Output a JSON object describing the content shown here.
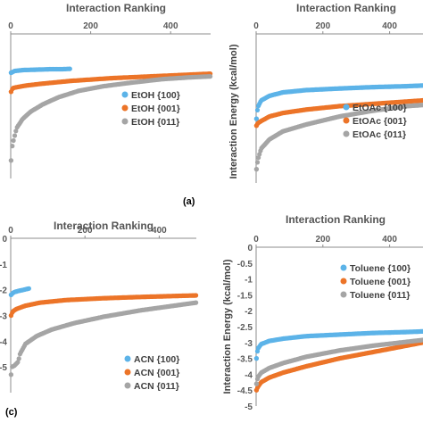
{
  "panels_label": [
    "(a)",
    "(c)"
  ],
  "colors": {
    "blue": "#5cb3e8",
    "orange": "#ec7428",
    "gray": "#a5a5a5"
  },
  "chart_data": [
    {
      "id": "a",
      "type": "scatter",
      "title": "Interaction Ranking",
      "xlabel": "",
      "ylabel": "",
      "xlim": [
        0,
        500
      ],
      "x_ticks": [
        0,
        200,
        400
      ],
      "ylim": [
        -8,
        0
      ],
      "y_tick_labels": [],
      "panel_label": "(a)",
      "legend_position": "bottom-right",
      "series": [
        {
          "name": "EtOH {100}",
          "color": "#5cb3e8",
          "points": [
            [
              1,
              -2.15
            ],
            [
              10,
              -2.05
            ],
            [
              30,
              -2.0
            ],
            [
              60,
              -1.98
            ],
            [
              100,
              -1.95
            ],
            [
              130,
              -1.95
            ],
            [
              150,
              -1.93
            ]
          ]
        },
        {
          "name": "EtOH {001}",
          "color": "#ec7428",
          "points": [
            [
              1,
              -3.2
            ],
            [
              5,
              -3.0
            ],
            [
              15,
              -2.95
            ],
            [
              40,
              -2.85
            ],
            [
              80,
              -2.75
            ],
            [
              150,
              -2.6
            ],
            [
              250,
              -2.45
            ],
            [
              350,
              -2.35
            ],
            [
              450,
              -2.25
            ],
            [
              500,
              -2.2
            ]
          ]
        },
        {
          "name": "EtOH {011}",
          "color": "#a5a5a5",
          "points": [
            [
              1,
              -7.0
            ],
            [
              3,
              -6.3
            ],
            [
              8,
              -5.8
            ],
            [
              15,
              -5.2
            ],
            [
              30,
              -4.7
            ],
            [
              50,
              -4.3
            ],
            [
              80,
              -3.9
            ],
            [
              120,
              -3.5
            ],
            [
              170,
              -3.15
            ],
            [
              230,
              -2.9
            ],
            [
              300,
              -2.7
            ],
            [
              380,
              -2.5
            ],
            [
              450,
              -2.4
            ],
            [
              500,
              -2.35
            ]
          ]
        }
      ]
    },
    {
      "id": "b",
      "type": "scatter",
      "title": "Interaction Ranking",
      "xlabel": "",
      "ylabel": "Interaction Energy (kcal/mol)",
      "xlim": [
        0,
        500
      ],
      "x_ticks": [
        0,
        200,
        400
      ],
      "ylim": [
        -6.5,
        0
      ],
      "y_tick_labels": [],
      "panel_label": "",
      "legend_position": "bottom-right",
      "series": [
        {
          "name": "EtOAc {100}",
          "color": "#5cb3e8",
          "points": [
            [
              1,
              -3.7
            ],
            [
              5,
              -3.2
            ],
            [
              15,
              -2.9
            ],
            [
              40,
              -2.7
            ],
            [
              80,
              -2.55
            ],
            [
              150,
              -2.45
            ],
            [
              250,
              -2.38
            ],
            [
              350,
              -2.32
            ],
            [
              450,
              -2.28
            ],
            [
              500,
              -2.25
            ]
          ]
        },
        {
          "name": "EtOAc {001}",
          "color": "#ec7428",
          "points": [
            [
              1,
              -4.0
            ],
            [
              5,
              -3.9
            ],
            [
              15,
              -3.8
            ],
            [
              40,
              -3.6
            ],
            [
              80,
              -3.45
            ],
            [
              150,
              -3.3
            ],
            [
              250,
              -3.15
            ],
            [
              350,
              -3.05
            ],
            [
              450,
              -2.95
            ],
            [
              500,
              -2.9
            ]
          ]
        },
        {
          "name": "EtOAc {011}",
          "color": "#a5a5a5",
          "points": [
            [
              1,
              -5.9
            ],
            [
              5,
              -5.5
            ],
            [
              15,
              -5.0
            ],
            [
              40,
              -4.6
            ],
            [
              80,
              -4.25
            ],
            [
              150,
              -3.95
            ],
            [
              250,
              -3.6
            ],
            [
              350,
              -3.35
            ],
            [
              450,
              -3.15
            ],
            [
              500,
              -3.1
            ]
          ]
        }
      ]
    },
    {
      "id": "c",
      "type": "scatter",
      "title": "Interaction Ranking",
      "xlabel": "",
      "ylabel": "",
      "xlim": [
        0,
        500
      ],
      "x_ticks": [
        0,
        200,
        400
      ],
      "ylim": [
        -6,
        0
      ],
      "y_tick_labels": [
        "0",
        "-1",
        "-2",
        "-3",
        "-4",
        "-5"
      ],
      "y_tick_values": [
        0,
        -1,
        -2,
        -3,
        -4,
        -5
      ],
      "panel_label": "(c)",
      "legend_position": "bottom-right",
      "series": [
        {
          "name": "ACN {100}",
          "color": "#5cb3e8",
          "points": [
            [
              1,
              -2.2
            ],
            [
              8,
              -2.1
            ],
            [
              20,
              -2.05
            ],
            [
              35,
              -2.0
            ],
            [
              50,
              -1.95
            ]
          ]
        },
        {
          "name": "ACN {001}",
          "color": "#ec7428",
          "points": [
            [
              1,
              -3.0
            ],
            [
              5,
              -2.85
            ],
            [
              15,
              -2.75
            ],
            [
              40,
              -2.62
            ],
            [
              80,
              -2.5
            ],
            [
              150,
              -2.4
            ],
            [
              250,
              -2.33
            ],
            [
              350,
              -2.28
            ],
            [
              450,
              -2.24
            ],
            [
              500,
              -2.22
            ]
          ]
        },
        {
          "name": "ACN {011}",
          "color": "#a5a5a5",
          "points": [
            [
              1,
              -5.3
            ],
            [
              3,
              -5.0
            ],
            [
              10,
              -4.95
            ],
            [
              20,
              -4.8
            ],
            [
              25,
              -4.5
            ],
            [
              40,
              -4.1
            ],
            [
              70,
              -3.8
            ],
            [
              110,
              -3.55
            ],
            [
              170,
              -3.3
            ],
            [
              250,
              -3.05
            ],
            [
              350,
              -2.8
            ],
            [
              450,
              -2.6
            ],
            [
              500,
              -2.5
            ]
          ]
        }
      ]
    },
    {
      "id": "d",
      "type": "scatter",
      "title": "Interaction Ranking",
      "xlabel": "",
      "ylabel": "Interaction Energy (kcal/mol)",
      "xlim": [
        0,
        500
      ],
      "x_ticks": [
        0,
        200,
        400
      ],
      "ylim": [
        -5,
        0
      ],
      "y_tick_labels": [
        "0",
        "-0.5",
        "-1",
        "-1.5",
        "-2",
        "-2.5",
        "-3",
        "-3.5",
        "-4",
        "-4.5",
        "-5"
      ],
      "y_tick_values": [
        0,
        -0.5,
        -1,
        -1.5,
        -2,
        -2.5,
        -3,
        -3.5,
        -4,
        -4.5,
        -5
      ],
      "panel_label": "",
      "legend_position": "top-right",
      "series": [
        {
          "name": "Toluene {100}",
          "color": "#5cb3e8",
          "points": [
            [
              1,
              -3.5
            ],
            [
              5,
              -3.2
            ],
            [
              15,
              -3.05
            ],
            [
              40,
              -2.95
            ],
            [
              80,
              -2.88
            ],
            [
              150,
              -2.8
            ],
            [
              250,
              -2.75
            ],
            [
              350,
              -2.7
            ],
            [
              450,
              -2.67
            ],
            [
              500,
              -2.65
            ]
          ]
        },
        {
          "name": "Toluene {001}",
          "color": "#ec7428",
          "points": [
            [
              1,
              -4.5
            ],
            [
              5,
              -4.4
            ],
            [
              15,
              -4.25
            ],
            [
              40,
              -4.1
            ],
            [
              80,
              -3.95
            ],
            [
              150,
              -3.75
            ],
            [
              250,
              -3.5
            ],
            [
              350,
              -3.3
            ],
            [
              450,
              -3.1
            ],
            [
              500,
              -3.0
            ]
          ]
        },
        {
          "name": "Toluene {011}",
          "color": "#a5a5a5",
          "points": [
            [
              1,
              -4.3
            ],
            [
              5,
              -4.1
            ],
            [
              15,
              -3.95
            ],
            [
              40,
              -3.8
            ],
            [
              80,
              -3.65
            ],
            [
              150,
              -3.45
            ],
            [
              250,
              -3.25
            ],
            [
              350,
              -3.1
            ],
            [
              450,
              -2.98
            ],
            [
              500,
              -2.92
            ]
          ]
        }
      ]
    }
  ]
}
